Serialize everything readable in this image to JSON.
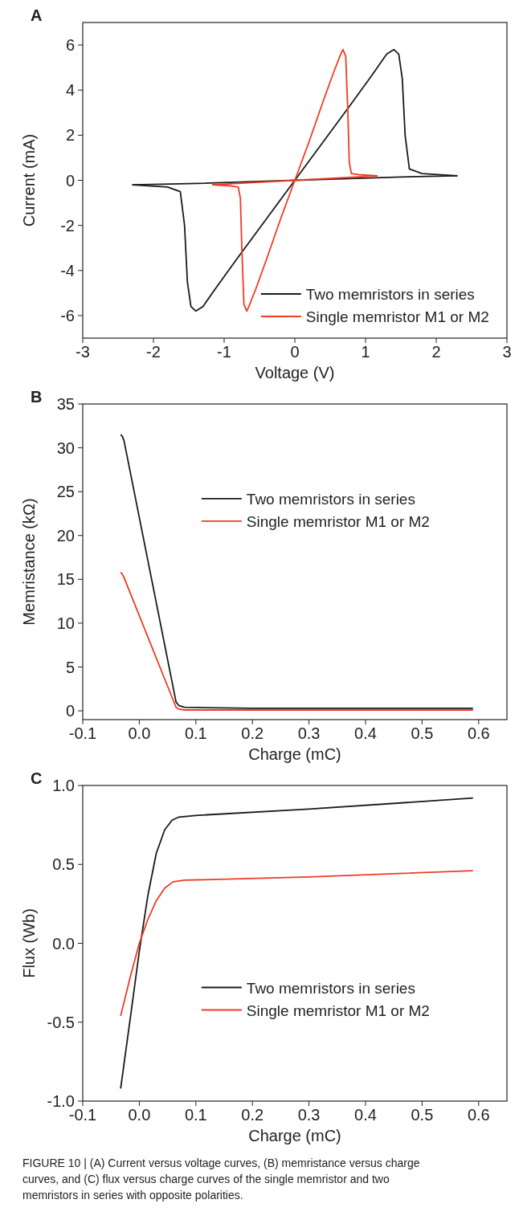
{
  "chart_data": [
    {
      "type": "line",
      "title": "A",
      "xlabel": "Voltage (V)",
      "ylabel": "Current (mA)",
      "xlim": [
        -3,
        3
      ],
      "xticks": [
        -3,
        -2,
        -1,
        0,
        1,
        2,
        3
      ],
      "ylim": [
        -7,
        7
      ],
      "yticks": [
        -6,
        -4,
        -2,
        0,
        2,
        4,
        6
      ],
      "legend": "bottom right",
      "grid": false,
      "marker": "none",
      "line_style": "solid",
      "series": [
        {
          "name": "Two memristors in series",
          "color": "#1a1a1a",
          "x": [
            -2.3,
            -1.8,
            -1.62,
            -1.56,
            -1.52,
            -1.47,
            -1.4,
            -1.3,
            -1.1,
            -0.8,
            -0.4,
            0,
            0.4,
            0.8,
            1.1,
            1.3,
            1.4,
            1.47,
            1.52,
            1.56,
            1.62,
            1.8,
            2.3
          ],
          "values": [
            -0.2,
            -0.3,
            -0.5,
            -2,
            -4.5,
            -5.6,
            -5.8,
            -5.6,
            -4.7,
            -3.4,
            -1.7,
            0,
            1.7,
            3.4,
            4.7,
            5.6,
            5.8,
            5.6,
            4.5,
            2,
            0.5,
            0.3,
            0.2
          ]
        },
        {
          "color": "#1a1a1a",
          "x": [
            -2.3,
            -1.5,
            -0.5,
            0,
            0.5,
            1.5,
            2.3
          ],
          "values": [
            -0.2,
            -0.15,
            -0.05,
            0,
            0.05,
            0.15,
            0.2
          ]
        },
        {
          "name": "Single memristor M1 or M2",
          "color": "#ef3b24",
          "x": [
            -1.17,
            -0.9,
            -0.8,
            -0.77,
            -0.75,
            -0.72,
            -0.68,
            -0.65,
            -0.55,
            -0.4,
            -0.2,
            0,
            0.2,
            0.4,
            0.55,
            0.65,
            0.68,
            0.72,
            0.75,
            0.77,
            0.8,
            0.9,
            1.17
          ],
          "values": [
            -0.2,
            -0.25,
            -0.3,
            -0.8,
            -3,
            -5.5,
            -5.8,
            -5.6,
            -4.8,
            -3.5,
            -1.7,
            0,
            1.7,
            3.5,
            4.8,
            5.6,
            5.8,
            5.5,
            3,
            0.8,
            0.3,
            0.25,
            0.2
          ]
        },
        {
          "color": "#ef3b24",
          "x": [
            -1.17,
            -0.6,
            0,
            0.6,
            1.17
          ],
          "values": [
            -0.2,
            -0.1,
            0,
            0.1,
            0.2
          ]
        }
      ]
    },
    {
      "type": "line",
      "title": "B",
      "xlabel": "Charge (mC)",
      "ylabel": "Memristance (kΩ)",
      "xlim": [
        -0.1,
        0.65
      ],
      "xticks": [
        {
          "value": -0.1,
          "label": "-0.1"
        },
        {
          "value": 0,
          "label": "0.0"
        },
        {
          "value": 0.1,
          "label": "0.1"
        },
        {
          "value": 0.2,
          "label": "0.2"
        },
        {
          "value": 0.3,
          "label": "0.3"
        },
        {
          "value": 0.4,
          "label": "0.4"
        },
        {
          "value": 0.5,
          "label": "0.5"
        },
        {
          "value": 0.6,
          "label": "0.6"
        }
      ],
      "ylim": [
        -1,
        35
      ],
      "yticks": [
        0,
        5,
        10,
        15,
        20,
        25,
        30,
        35
      ],
      "legend": "right",
      "grid": false,
      "marker": "none",
      "line_style": "solid",
      "series": [
        {
          "name": "Two memristors in series",
          "color": "#1a1a1a",
          "x": [
            -0.033,
            -0.03,
            -0.027,
            0.065,
            0.07,
            0.08,
            0.2,
            0.59
          ],
          "values": [
            31.5,
            31.3,
            30.8,
            1,
            0.6,
            0.4,
            0.3,
            0.3
          ]
        },
        {
          "name": "Single memristor M1 or M2",
          "color": "#ef3b24",
          "x": [
            -0.033,
            -0.03,
            -0.027,
            0.065,
            0.07,
            0.08,
            0.2,
            0.59
          ],
          "values": [
            15.8,
            15.6,
            15.2,
            0.4,
            0.2,
            0.1,
            0.1,
            0.1
          ]
        }
      ]
    },
    {
      "type": "line",
      "title": "C",
      "xlabel": "Charge (mC)",
      "ylabel": "Flux (Wb)",
      "xlim": [
        -0.1,
        0.65
      ],
      "xticks": [
        {
          "value": -0.1,
          "label": "-0.1"
        },
        {
          "value": 0,
          "label": "0.0"
        },
        {
          "value": 0.1,
          "label": "0.1"
        },
        {
          "value": 0.2,
          "label": "0.2"
        },
        {
          "value": 0.3,
          "label": "0.3"
        },
        {
          "value": 0.4,
          "label": "0.4"
        },
        {
          "value": 0.5,
          "label": "0.5"
        },
        {
          "value": 0.6,
          "label": "0.6"
        }
      ],
      "ylim": [
        -1,
        1
      ],
      "yticks": [
        {
          "value": -1,
          "label": "-1.0"
        },
        {
          "value": -0.5,
          "label": "-0.5"
        },
        {
          "value": 0,
          "label": "0.0"
        },
        {
          "value": 0.5,
          "label": "0.5"
        },
        {
          "value": 1,
          "label": "1.0"
        }
      ],
      "legend": "right",
      "grid": false,
      "marker": "none",
      "line_style": "solid",
      "annotations": [
        "FIGURE 10 | (A) Current versus voltage curves, (B) memristance versus charge curves, and (C) flux versus charge curves of the single memristor and two memristors in series with opposite polarities."
      ],
      "series": [
        {
          "name": "Two memristors in series",
          "color": "#1a1a1a",
          "x": [
            -0.033,
            -0.015,
            0,
            0.015,
            0.03,
            0.045,
            0.058,
            0.07,
            0.1,
            0.3,
            0.59
          ],
          "values": [
            -0.92,
            -0.45,
            -0.05,
            0.3,
            0.57,
            0.72,
            0.78,
            0.8,
            0.81,
            0.85,
            0.92
          ]
        },
        {
          "name": "Single memristor M1 or M2",
          "color": "#ef3b24",
          "x": [
            -0.033,
            -0.015,
            0,
            0.015,
            0.03,
            0.045,
            0.06,
            0.08,
            0.3,
            0.59
          ],
          "values": [
            -0.46,
            -0.2,
            0,
            0.15,
            0.27,
            0.35,
            0.39,
            0.4,
            0.42,
            0.46
          ]
        }
      ]
    }
  ]
}
